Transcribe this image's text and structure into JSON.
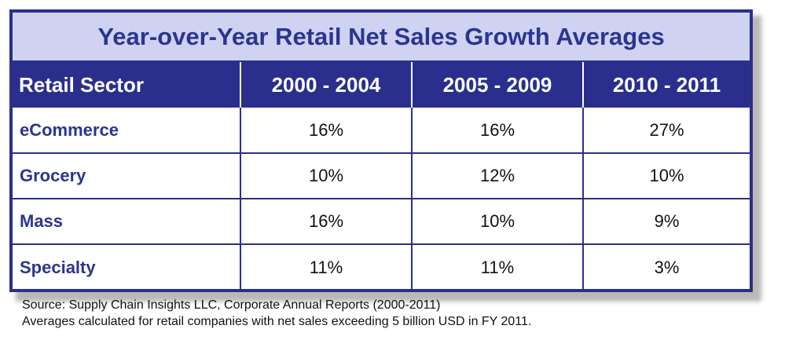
{
  "chart_data": {
    "type": "table",
    "title": "Year-over-Year Retail Net Sales Growth Averages",
    "columns": [
      "Retail Sector",
      "2000 - 2004",
      "2005 - 2009",
      "2010 - 2011"
    ],
    "rows": [
      {
        "sector": "eCommerce",
        "values": [
          "16%",
          "16%",
          "27%"
        ]
      },
      {
        "sector": "Grocery",
        "values": [
          "10%",
          "12%",
          "10%"
        ]
      },
      {
        "sector": "Mass",
        "values": [
          "16%",
          "10%",
          "9%"
        ]
      },
      {
        "sector": "Specialty",
        "values": [
          "11%",
          "11%",
          "3%"
        ]
      }
    ]
  },
  "notes": {
    "source": "Source:  Supply Chain Insights LLC, Corporate Annual Reports (2000-2011)",
    "averages": "Averages calculated for retail companies with net sales exceeding 5 billion USD in FY 2011."
  },
  "colors": {
    "header_bg": "#2a2f8d",
    "title_bg": "#cfd3f1",
    "title_text": "#2b3590",
    "border": "#2b2f8a"
  }
}
